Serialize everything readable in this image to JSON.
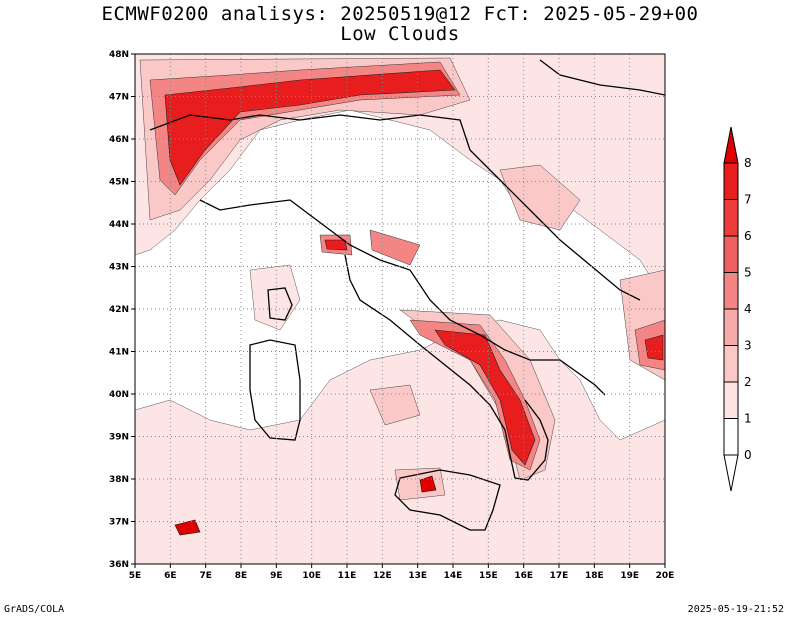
{
  "header": {
    "title_line1": "ECMWF0200 analisys: 20250519@12 FcT: 2025-05-29+00",
    "title_line2": "Low Clouds"
  },
  "footer": {
    "left": "GrADS/COLA",
    "right": "2025-05-19-21:52"
  },
  "map": {
    "lon_range": [
      5,
      20
    ],
    "lat_range": [
      36,
      48
    ],
    "lon_ticks": [
      "5E",
      "6E",
      "7E",
      "8E",
      "9E",
      "10E",
      "11E",
      "12E",
      "13E",
      "14E",
      "15E",
      "16E",
      "17E",
      "18E",
      "19E",
      "20E"
    ],
    "lat_ticks": [
      "36N",
      "37N",
      "38N",
      "39N",
      "40N",
      "41N",
      "42N",
      "43N",
      "44N",
      "45N",
      "46N",
      "47N",
      "48N"
    ],
    "grid": "dotted"
  },
  "colorbar": {
    "levels": [
      "0",
      "1",
      "2",
      "3",
      "4",
      "5",
      "6",
      "7",
      "8"
    ],
    "colors": [
      "#ffffff",
      "#fde5e5",
      "#fbc8c8",
      "#f8a9a9",
      "#f48585",
      "#f06060",
      "#ec3c3c",
      "#e81d1d",
      "#e00000"
    ]
  },
  "colors": {
    "land_outline": "#000000",
    "contour": "#000000"
  }
}
